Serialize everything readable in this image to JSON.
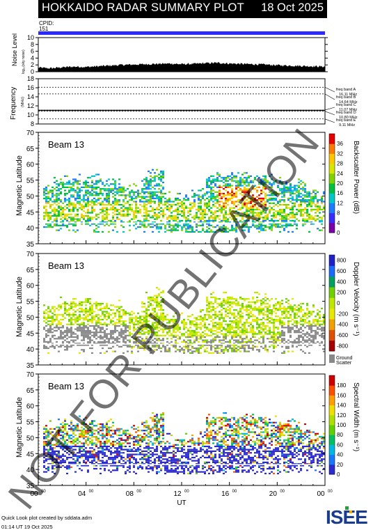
{
  "header": {
    "title": "HOKKAIDO RADAR SUMMARY PLOT",
    "date": "18 Oct 2025"
  },
  "cpid": {
    "label": "CPID:",
    "value": "151"
  },
  "footer": {
    "line1": "Quick Look plot created by sddata.adm",
    "line2": "01:14 UT 19 Oct 2025"
  },
  "watermark": "NOT FOR PUBLICATION",
  "logo": "ISEE",
  "colors": {
    "cpid_bar": "#2b2bff",
    "header_bg": "#000000"
  },
  "chart_data": [
    {
      "type": "area",
      "name": "noise-level",
      "ylabel": "Noise Level",
      "ysub": "log₁₀(sky noise)",
      "ylim": [
        0,
        10
      ],
      "yticks": [
        0,
        2,
        4,
        6,
        8,
        10
      ],
      "x": [
        0,
        1,
        2,
        3,
        4,
        5,
        6,
        7,
        8,
        9,
        10,
        11,
        12,
        13,
        14,
        15,
        16,
        17,
        18,
        19,
        20,
        21,
        22,
        23,
        24
      ],
      "values": [
        1.2,
        1.0,
        1.3,
        1.5,
        1.4,
        1.6,
        1.8,
        2.0,
        2.1,
        2.2,
        2.3,
        2.4,
        2.2,
        2.3,
        2.5,
        2.6,
        2.4,
        2.3,
        2.2,
        2.1,
        1.9,
        1.8,
        1.7,
        1.6,
        1.5
      ]
    },
    {
      "type": "line",
      "name": "frequency",
      "ylabel": "Frequency",
      "yunit": "(MHz)",
      "ylim": [
        8,
        18
      ],
      "yticks": [
        8,
        10,
        12,
        14,
        16,
        18
      ],
      "bands": [
        {
          "name": "freq band A",
          "value": 16.11,
          "label": "16.11 MHz"
        },
        {
          "name": "freq band B",
          "value": 14.64,
          "label": "14.64 MHz"
        },
        {
          "name": "freq band C",
          "value": 11.07,
          "label": "11.07 MHz"
        },
        {
          "name": "freq band D",
          "value": 10.8,
          "label": "10.80 MHz"
        },
        {
          "name": "freq band E",
          "value": 9.11,
          "label": "9.11 MHz"
        }
      ],
      "operating_value": 11.0
    },
    {
      "type": "heatmap",
      "name": "backscatter-power",
      "label": "Beam 13",
      "ylabel": "Magnetic Latitude",
      "ylim": [
        35,
        70
      ],
      "yticks": [
        35,
        40,
        45,
        50,
        55,
        60,
        65,
        70
      ],
      "colorbar": {
        "title": "Backscatter Power (dB)",
        "ticks": [
          "0",
          "4",
          "8",
          "12",
          "16",
          "20",
          "24",
          "28",
          "32",
          "36"
        ]
      }
    },
    {
      "type": "heatmap",
      "name": "doppler-velocity",
      "label": "Beam 13",
      "ylabel": "Magnetic Latitude",
      "ylim": [
        35,
        70
      ],
      "yticks": [
        35,
        40,
        45,
        50,
        55,
        60,
        65,
        70
      ],
      "colorbar": {
        "title": "Doppler Velocity (m s⁻¹)",
        "ticks": [
          "-800",
          "-600",
          "-400",
          "-200",
          "0",
          "200",
          "400",
          "600",
          "800"
        ],
        "ground_label": [
          "Ground",
          "Scatter"
        ]
      }
    },
    {
      "type": "heatmap",
      "name": "spectral-width",
      "label": "Beam 13",
      "ylabel": "Magnetic Latitude",
      "ylim": [
        35,
        70
      ],
      "yticks": [
        35,
        40,
        45,
        50,
        55,
        60,
        65,
        70
      ],
      "colorbar": {
        "title": "Spectral Width (m s⁻¹)",
        "ticks": [
          "0",
          "20",
          "40",
          "60",
          "80",
          "100",
          "120",
          "140",
          "160",
          "180"
        ]
      }
    }
  ],
  "xaxis": {
    "label": "UT",
    "ticks": [
      "00",
      "04",
      "08",
      "12",
      "16",
      "20",
      "00"
    ],
    "sup": "00"
  }
}
